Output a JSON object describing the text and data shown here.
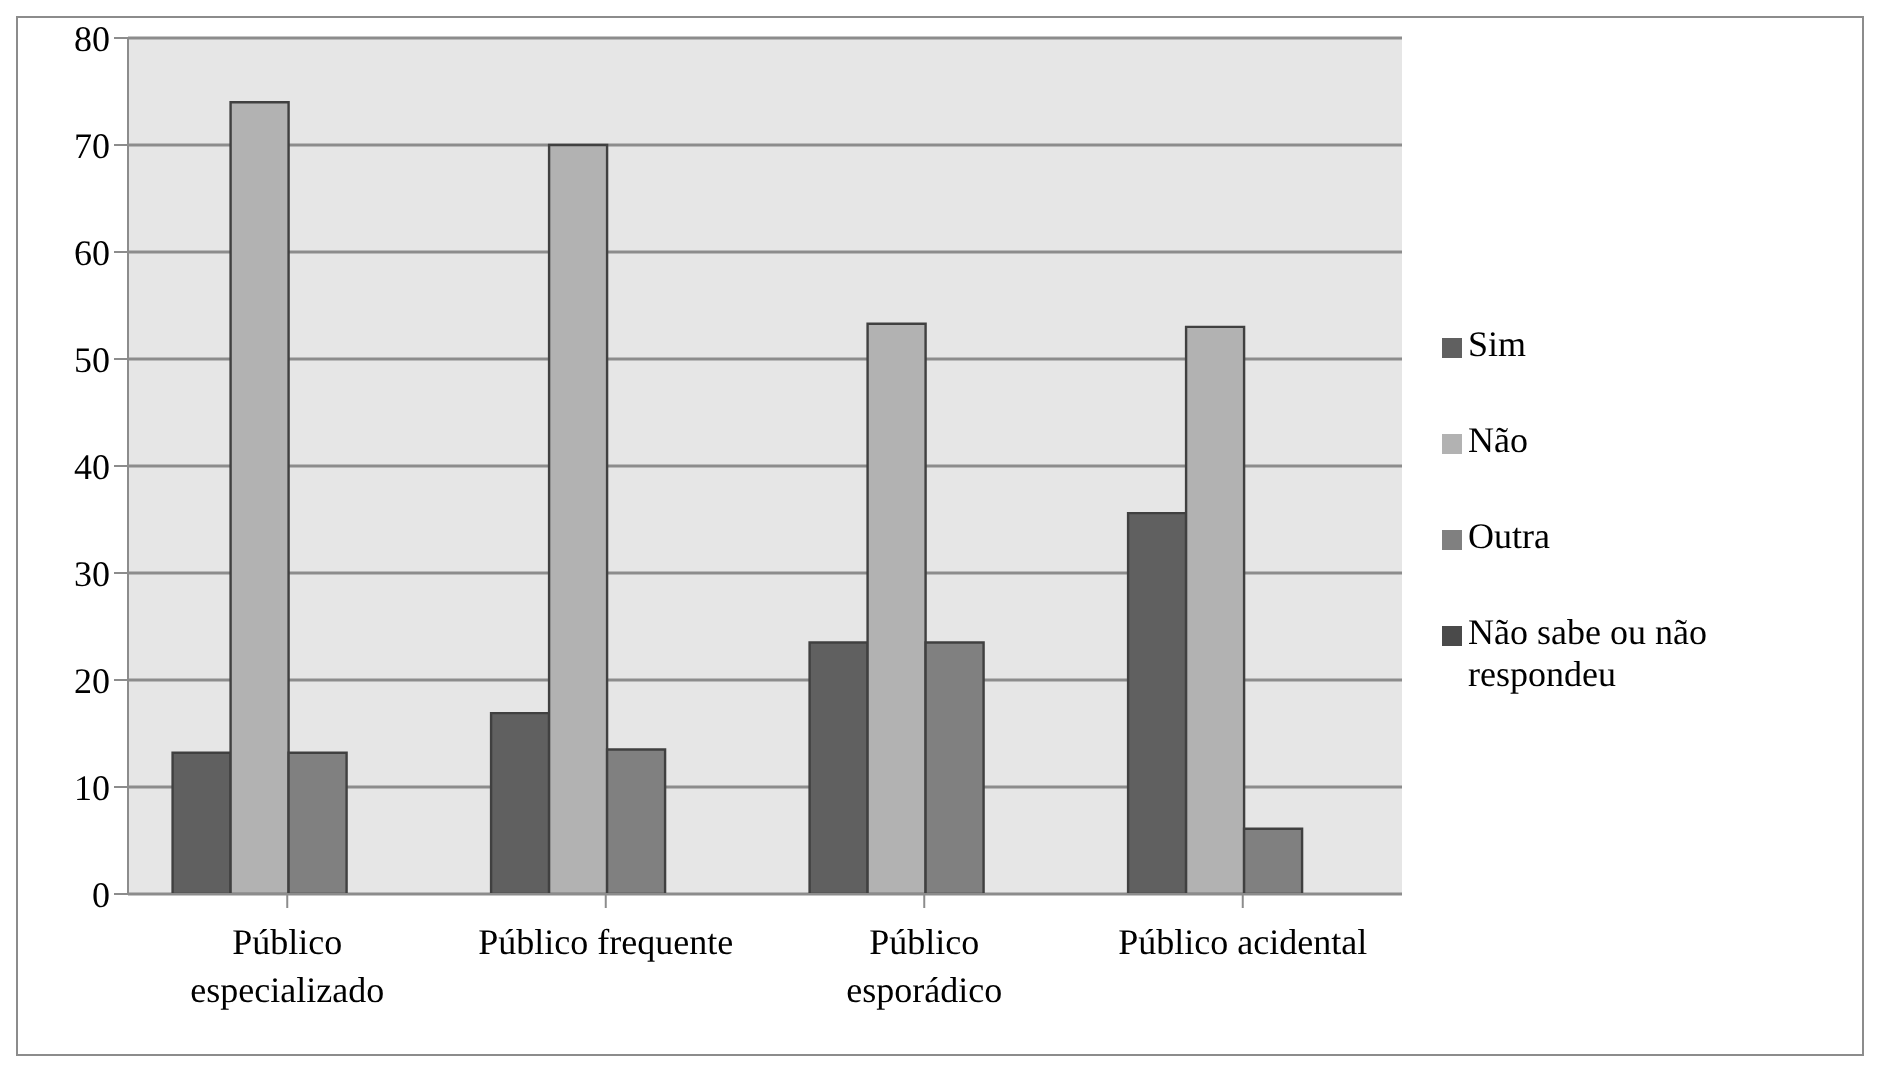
{
  "chart_data": {
    "type": "bar",
    "categories": [
      "Público especializado",
      "Público frequente",
      "Público esporádico",
      "Público acidental"
    ],
    "series": [
      {
        "name": "Sim",
        "color": "#606060",
        "values": [
          13.2,
          16.9,
          23.5,
          35.6
        ]
      },
      {
        "name": "Não",
        "color": "#b2b2b2",
        "values": [
          74,
          70,
          53.3,
          53
        ]
      },
      {
        "name": "Outra",
        "color": "#808080",
        "values": [
          13.2,
          13.5,
          23.5,
          6.1
        ]
      },
      {
        "name": "Não sabe ou não respondeu",
        "color": "#4a4a4a",
        "values": [
          0,
          0,
          0,
          0
        ]
      }
    ],
    "ylim": [
      0,
      80
    ],
    "yticks": [
      0,
      10,
      20,
      30,
      40,
      50,
      60,
      70,
      80
    ],
    "grid": "y",
    "legend": "right"
  }
}
